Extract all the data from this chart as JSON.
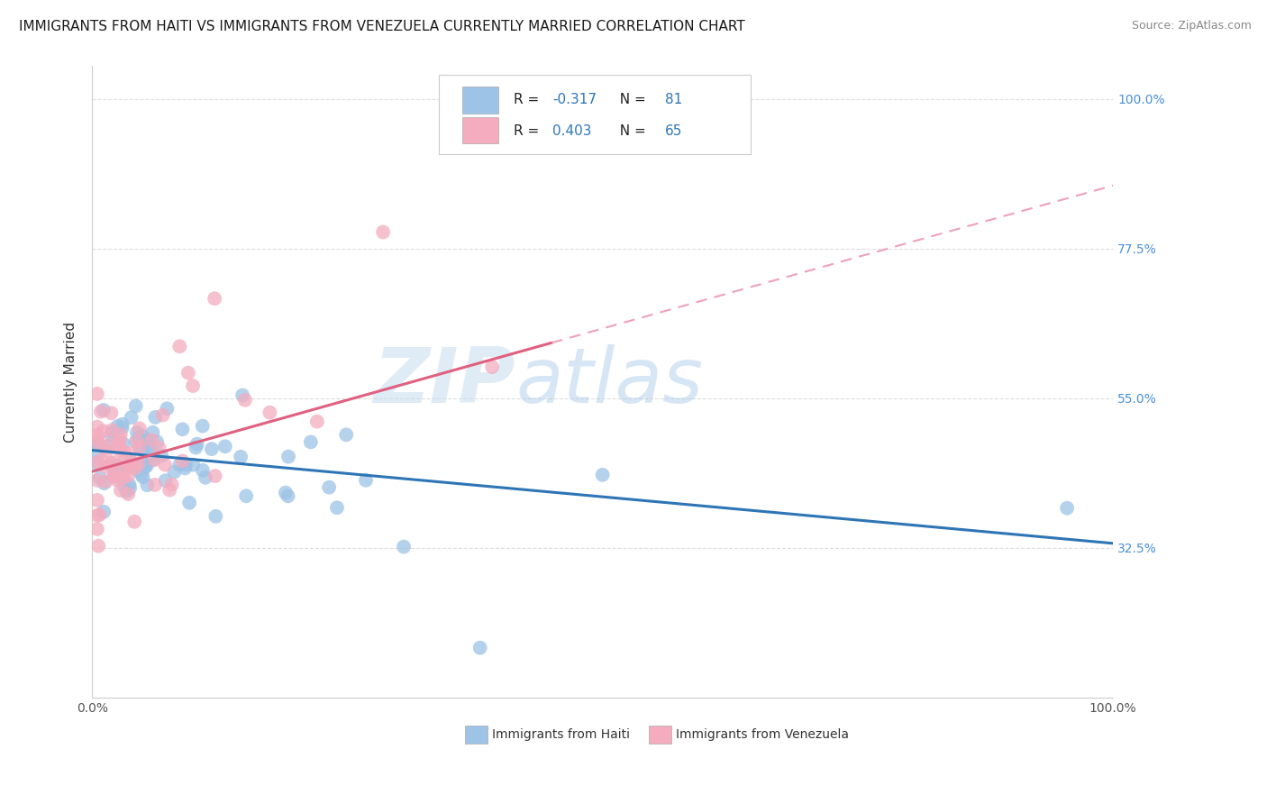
{
  "title": "IMMIGRANTS FROM HAITI VS IMMIGRANTS FROM VENEZUELA CURRENTLY MARRIED CORRELATION CHART",
  "source_text": "Source: ZipAtlas.com",
  "ylabel": "Currently Married",
  "xlabel_haiti": "Immigrants from Haiti",
  "xlabel_venezuela": "Immigrants from Venezuela",
  "watermark_zip": "ZIP",
  "watermark_atlas": "atlas",
  "haiti_R": -0.317,
  "haiti_N": 81,
  "venezuela_R": 0.403,
  "venezuela_N": 65,
  "haiti_color": "#9dc3e6",
  "venezuela_color": "#f4acbe",
  "haiti_line_color": "#2e75b6",
  "venezuela_line_color": "#e06080",
  "venezuela_dashed_color": "#f0a0b8",
  "xlim": [
    0.0,
    1.0
  ],
  "ylim": [
    0.1,
    1.05
  ],
  "yticks": [
    0.325,
    0.55,
    0.775,
    1.0
  ],
  "ytick_labels": [
    "32.5%",
    "55.0%",
    "77.5%",
    "100.0%"
  ],
  "xtick_labels": [
    "0.0%",
    "100.0%"
  ],
  "background_color": "#ffffff",
  "grid_color": "#dddddd",
  "title_fontsize": 11,
  "axis_label_fontsize": 11,
  "tick_fontsize": 10,
  "legend_fontsize": 11,
  "source_fontsize": 9,
  "right_tick_color": "#4a90d9",
  "legend_r_color": "#2e75b6",
  "legend_n_color": "#2e75b6"
}
